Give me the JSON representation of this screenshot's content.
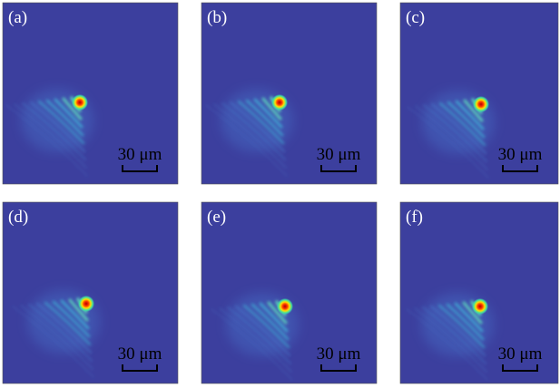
{
  "panels": [
    {
      "label": "(a)",
      "scale_bar": "30 μm"
    },
    {
      "label": "(b)",
      "scale_bar": "30 μm"
    },
    {
      "label": "(c)",
      "scale_bar": "30 μm"
    },
    {
      "label": "(d)",
      "scale_bar": "30 μm"
    },
    {
      "label": "(e)",
      "scale_bar": "30 μm"
    },
    {
      "label": "(f)",
      "scale_bar": "30 μm"
    }
  ]
}
